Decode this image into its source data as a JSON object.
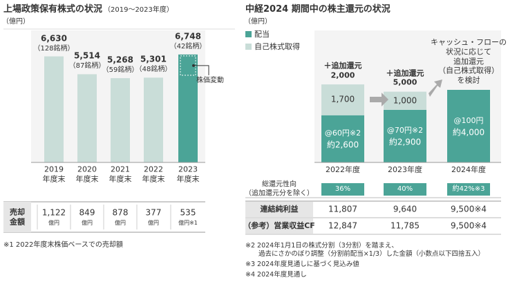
{
  "chart_data": [
    {
      "type": "bar",
      "title": "上場政策保有株式の状況",
      "subtitle": "（2019～2023年度）",
      "unit": "（億円）",
      "categories": [
        "2019\n年度末",
        "2020\n年度末",
        "2021\n年度末",
        "2022\n年度末",
        "2023\n年度末"
      ],
      "values": [
        6630,
        5514,
        5268,
        5301,
        6748
      ],
      "value_labels": [
        "6,630",
        "5,514",
        "5,268",
        "5,301",
        "6,748"
      ],
      "stock_counts": [
        "（128銘柄）",
        "（87銘柄）",
        "（59銘柄）",
        "（48銘柄）",
        "（42銘柄）"
      ],
      "colors": [
        "#c9ddd8",
        "#c9ddd8",
        "#c9ddd8",
        "#c9ddd8",
        "#4ba497"
      ],
      "ylim": [
        0,
        7000
      ],
      "annotation": "株価変動"
    },
    {
      "type": "stacked_bar",
      "title": "中経2024 期間中の株主還元の状況",
      "unit": "（億円）",
      "categories": [
        "2022年度",
        "2023年度",
        "2024年度"
      ],
      "series": [
        {
          "name": "配当",
          "color": "#4ba497",
          "values": [
            2600,
            2900,
            4000
          ],
          "value_labels": [
            "約2,600",
            "約2,900",
            "約4,000"
          ],
          "per_share": [
            "@60円※2",
            "@70円※2",
            "@100円"
          ]
        },
        {
          "name": "自己株式取得",
          "color": "#c9ddd8",
          "values": [
            1700,
            1000,
            null
          ],
          "value_labels": [
            "1,700",
            "1,000",
            null
          ]
        }
      ],
      "ylim": [
        0,
        4800
      ],
      "annotations": [
        "＋追加還元\n2,000",
        "＋追加還元\n5,000",
        "キャッシュ・フローの\n状況に応じて\n追加還元\n（自己株式取得）\nを検討"
      ]
    }
  ],
  "sales_table": {
    "header": "売却\n金額",
    "cells": [
      {
        "value": "1,122",
        "unit": "億円"
      },
      {
        "value": "849",
        "unit": "億円"
      },
      {
        "value": "878",
        "unit": "億円"
      },
      {
        "value": "377",
        "unit": "億円"
      },
      {
        "value": "535",
        "unit": "億円※1"
      }
    ]
  },
  "returns_table": {
    "rows": [
      {
        "label": "総還元性向\n（追加還元分を除く）",
        "cells": [
          "36%",
          "40%",
          "約42%※3"
        ]
      },
      {
        "label": "連結純利益",
        "cells": [
          "11,807",
          "9,640",
          "9,500※4"
        ]
      },
      {
        "label": "（参考）営業収益CF",
        "cells": [
          "12,847",
          "11,785",
          "9,500※4"
        ]
      }
    ]
  },
  "footnotes_left": [
    "※1 2022年度末株価ベースでの売却額"
  ],
  "footnotes_right": [
    "※2 2024年1月1日の株式分割（3分割）を踏まえ、\n　　過去にさかのぼり調整（分割前配当×1/3）した金額（小数点以下四捨五入）",
    "※3 2024年度見通しに基づく見込み値",
    "※4 2024年度見通し"
  ]
}
